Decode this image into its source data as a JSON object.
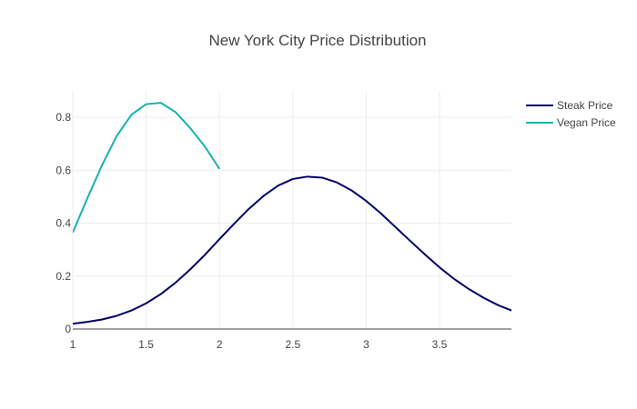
{
  "chart_data": {
    "type": "line",
    "title": "New York City Price Distribution",
    "xlabel": "",
    "ylabel": "",
    "xlim": [
      1,
      3.99
    ],
    "ylim": [
      0,
      0.9
    ],
    "x_ticks": [
      1,
      1.5,
      2,
      2.5,
      3,
      3.5
    ],
    "x_tick_labels": [
      "1",
      "1.5",
      "2",
      "2.5",
      "3",
      "3.5"
    ],
    "y_ticks": [
      0,
      0.2,
      0.4,
      0.6,
      0.8
    ],
    "y_tick_labels": [
      "0",
      "0.2",
      "0.4",
      "0.6",
      "0.8"
    ],
    "grid": true,
    "legend_position": "top-right",
    "series": [
      {
        "name": "Steak Price",
        "color": "#000066",
        "x": [
          1.0,
          1.1,
          1.2,
          1.3,
          1.4,
          1.5,
          1.6,
          1.7,
          1.8,
          1.9,
          2.0,
          2.1,
          2.2,
          2.3,
          2.4,
          2.5,
          2.6,
          2.7,
          2.8,
          2.9,
          3.0,
          3.1,
          3.2,
          3.3,
          3.4,
          3.5,
          3.6,
          3.7,
          3.8,
          3.9,
          4.0
        ],
        "y": [
          0.02,
          0.027,
          0.036,
          0.05,
          0.07,
          0.097,
          0.132,
          0.175,
          0.225,
          0.28,
          0.34,
          0.398,
          0.454,
          0.503,
          0.542,
          0.567,
          0.576,
          0.572,
          0.554,
          0.524,
          0.484,
          0.437,
          0.385,
          0.333,
          0.282,
          0.233,
          0.189,
          0.151,
          0.118,
          0.09,
          0.068
        ]
      },
      {
        "name": "Vegan Price",
        "color": "#17b0b0",
        "x": [
          1.0,
          1.1,
          1.2,
          1.3,
          1.4,
          1.5,
          1.6,
          1.7,
          1.8,
          1.9,
          2.0
        ],
        "y": [
          0.365,
          0.495,
          0.62,
          0.73,
          0.81,
          0.85,
          0.855,
          0.82,
          0.76,
          0.69,
          0.605
        ]
      }
    ]
  }
}
